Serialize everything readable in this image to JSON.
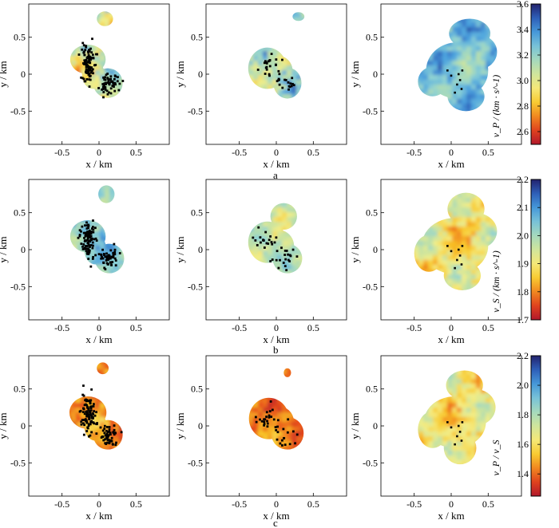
{
  "chart_data": {
    "type": "heatmap",
    "axis_labels": {
      "x": "x / km",
      "y": "y / km"
    },
    "x_ticks": [
      -0.5,
      0,
      0.5
    ],
    "y_ticks": [
      0.5,
      0,
      -0.5
    ],
    "xlim": [
      -0.95,
      0.95
    ],
    "ylim": [
      -0.95,
      0.95
    ],
    "rows": [
      {
        "label": "a",
        "colorbar": {
          "variable": "v_P / (km · s^-1)",
          "range": [
            2.5,
            3.6
          ],
          "ticks": [
            "3.6",
            "3.4",
            "3.2",
            "3.0",
            "2.8",
            "2.6"
          ]
        },
        "panels": [
          {
            "mean": 3.05,
            "spread": 0.42
          },
          {
            "mean": 3.12,
            "spread": 0.38
          },
          {
            "mean": 3.28,
            "spread": 0.25
          }
        ]
      },
      {
        "label": "b",
        "colorbar": {
          "variable": "v_S / (km · s^-1)",
          "range": [
            1.7,
            2.2
          ],
          "ticks": [
            "2.2",
            "2.1",
            "2.0",
            "1.9",
            "1.8",
            "1.7"
          ]
        },
        "panels": [
          {
            "mean": 2.02,
            "spread": 0.12
          },
          {
            "mean": 1.97,
            "spread": 0.12
          },
          {
            "mean": 1.9,
            "spread": 0.14
          }
        ]
      },
      {
        "label": "c",
        "colorbar": {
          "variable": "v_P / v_S",
          "range": [
            1.25,
            2.2
          ],
          "ticks": [
            "2.2",
            "2.0",
            "1.8",
            "1.6",
            "1.4"
          ]
        },
        "panels": [
          {
            "mean": 1.45,
            "spread": 0.22
          },
          {
            "mean": 1.42,
            "spread": 0.18
          },
          {
            "mean": 1.62,
            "spread": 0.25
          }
        ]
      }
    ],
    "region_shapes": {
      "A": [
        {
          "blobs": [
            [
              0.08,
              0.75,
              0.11,
              0.1
            ],
            [
              -0.15,
              0.2,
              0.24,
              0.2
            ],
            [
              0.12,
              -0.12,
              0.2,
              0.2
            ],
            [
              -0.08,
              0.0,
              0.15,
              0.2
            ]
          ]
        },
        {
          "blobs": [
            [
              0.3,
              0.78,
              0.08,
              0.06
            ],
            [
              -0.12,
              0.08,
              0.26,
              0.28
            ],
            [
              0.15,
              -0.12,
              0.19,
              0.21
            ],
            [
              0.02,
              0.05,
              0.2,
              0.2
            ]
          ]
        },
        {
          "blobs": [
            [
              0.25,
              0.55,
              0.28,
              0.2
            ],
            [
              0.32,
              0.3,
              0.3,
              0.25
            ],
            [
              0.08,
              0.05,
              0.42,
              0.38
            ],
            [
              0.2,
              -0.3,
              0.25,
              0.2
            ],
            [
              -0.25,
              -0.1,
              0.2,
              0.2
            ]
          ]
        }
      ],
      "B": [
        {
          "blobs": [
            [
              0.1,
              0.75,
              0.11,
              0.12
            ],
            [
              -0.15,
              0.18,
              0.24,
              0.22
            ],
            [
              0.14,
              -0.12,
              0.2,
              0.2
            ],
            [
              -0.05,
              0.0,
              0.15,
              0.2
            ]
          ]
        },
        {
          "blobs": [
            [
              0.1,
              0.45,
              0.18,
              0.18
            ],
            [
              -0.12,
              0.1,
              0.26,
              0.28
            ],
            [
              0.15,
              -0.12,
              0.2,
              0.2
            ],
            [
              0.02,
              0.05,
              0.22,
              0.22
            ]
          ]
        },
        {
          "blobs": [
            [
              0.2,
              0.55,
              0.25,
              0.22
            ],
            [
              0.32,
              0.25,
              0.3,
              0.25
            ],
            [
              0.05,
              0.05,
              0.45,
              0.38
            ],
            [
              0.15,
              -0.35,
              0.25,
              0.2
            ],
            [
              -0.3,
              -0.05,
              0.2,
              0.25
            ]
          ]
        }
      ],
      "C": [
        {
          "blobs": [
            [
              0.05,
              0.78,
              0.08,
              0.08
            ],
            [
              -0.15,
              0.18,
              0.25,
              0.22
            ],
            [
              0.12,
              -0.12,
              0.2,
              0.2
            ],
            [
              -0.05,
              0.0,
              0.15,
              0.2
            ]
          ]
        },
        {
          "blobs": [
            [
              0.15,
              0.72,
              0.05,
              0.06
            ],
            [
              -0.1,
              0.1,
              0.27,
              0.28
            ],
            [
              0.15,
              -0.1,
              0.22,
              0.22
            ],
            [
              0.02,
              0.05,
              0.22,
              0.22
            ]
          ]
        },
        {
          "blobs": [
            [
              0.18,
              0.55,
              0.25,
              0.2
            ],
            [
              0.32,
              0.25,
              0.28,
              0.25
            ],
            [
              0.05,
              0.05,
              0.42,
              0.35
            ],
            [
              0.12,
              -0.3,
              0.22,
              0.22
            ],
            [
              -0.25,
              -0.05,
              0.2,
              0.25
            ]
          ]
        }
      ]
    },
    "event_clusters": [
      {
        "cx": -0.15,
        "cy": 0.15,
        "sx": 0.05,
        "sy": 0.13,
        "n": 95
      },
      {
        "cx": 0.13,
        "cy": -0.12,
        "sx": 0.07,
        "sy": 0.07,
        "n": 55
      }
    ],
    "event_clusters_sparse": [
      {
        "cx": -0.12,
        "cy": 0.12,
        "sx": 0.08,
        "sy": 0.1,
        "n": 22
      },
      {
        "cx": 0.13,
        "cy": -0.1,
        "sx": 0.07,
        "sy": 0.08,
        "n": 18
      }
    ]
  }
}
